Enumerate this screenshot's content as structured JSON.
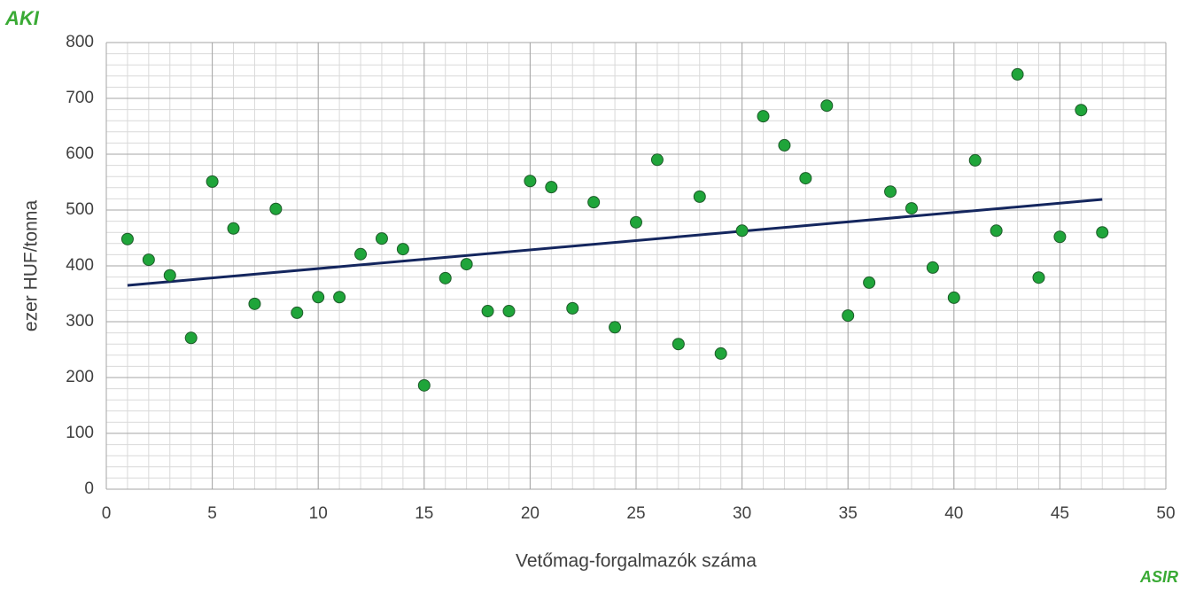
{
  "chart_data": {
    "type": "scatter",
    "x_label": "Vetőmag-forgalmazók száma",
    "y_label": "ezer HUF/tonna",
    "x": [
      1,
      2,
      3,
      4,
      5,
      6,
      7,
      8,
      9,
      10,
      11,
      12,
      13,
      14,
      15,
      16,
      17,
      18,
      19,
      20,
      21,
      22,
      23,
      24,
      25,
      26,
      27,
      28,
      29,
      30,
      31,
      32,
      33,
      34,
      35,
      36,
      37,
      38,
      39,
      40,
      41,
      42,
      43,
      44,
      45,
      46,
      47
    ],
    "values": [
      448,
      411,
      383,
      271,
      551,
      467,
      332,
      502,
      316,
      344,
      344,
      421,
      449,
      430,
      186,
      378,
      403,
      319,
      319,
      552,
      541,
      324,
      514,
      290,
      478,
      590,
      260,
      524,
      243,
      463,
      668,
      616,
      557,
      687,
      311,
      370,
      533,
      503,
      397,
      343,
      589,
      463,
      743,
      379,
      452,
      679,
      460
    ],
    "color": "#1fa53a",
    "trendline": {
      "x": [
        1,
        47
      ],
      "values": [
        365,
        519
      ],
      "color": "#14265e"
    },
    "xlim": [
      0,
      50
    ],
    "xticks": [
      0,
      5,
      10,
      15,
      20,
      25,
      30,
      35,
      40,
      45,
      50
    ],
    "ylim": [
      0,
      800
    ],
    "yticks": [
      0,
      100,
      200,
      300,
      400,
      500,
      600,
      700,
      800
    ],
    "grid": true,
    "minor_grid": {
      "x": 1,
      "y": 20
    }
  },
  "logos": {
    "top_left": "AKI",
    "bottom_right": "ASIR"
  }
}
